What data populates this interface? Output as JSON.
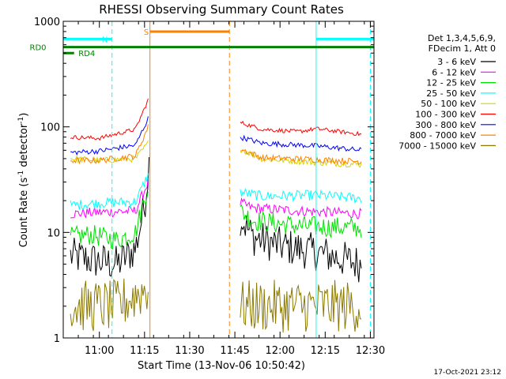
{
  "chart_data": {
    "type": "line",
    "title": "RHESSI Observing Summary Count Rates",
    "xlabel": "Start Time (13-Nov-06 10:50:42)",
    "ylabel_main": "Count Rate (s",
    "ylabel_sup1": "-1",
    "ylabel_mid": " detector",
    "ylabel_sup2": "-1",
    "ylabel_end": ")",
    "yscale": "log",
    "ylim": [
      1,
      1000
    ],
    "xlim_minutes": [
      10.8,
      12.52
    ],
    "x_tick_labels": [
      {
        "t": 11.0,
        "label": "11:00"
      },
      {
        "t": 11.25,
        "label": "11:15"
      },
      {
        "t": 11.5,
        "label": "11:30"
      },
      {
        "t": 11.75,
        "label": "11:45"
      },
      {
        "t": 12.0,
        "label": "12:00"
      },
      {
        "t": 12.25,
        "label": "12:15"
      },
      {
        "t": 12.5,
        "label": "12:30"
      }
    ],
    "y_tick_labels": [
      {
        "v": 1,
        "label": "1"
      },
      {
        "v": 10,
        "label": "10"
      },
      {
        "v": 100,
        "label": "100"
      },
      {
        "v": 1000,
        "label": "1000"
      }
    ],
    "legend_header": [
      "Det 1,3,4,5,6,9,",
      "FDecim 1, Att 0"
    ],
    "legend_position": "right",
    "gap": [
      11.28,
      11.78
    ],
    "series": [
      {
        "name": "3 - 6 keV",
        "color": "#000000",
        "pre": [
          [
            10.84,
            6.0
          ],
          [
            10.95,
            5.5
          ],
          [
            11.1,
            5.0
          ],
          [
            11.2,
            7.0
          ],
          [
            11.25,
            18.0
          ],
          [
            11.275,
            45.0
          ]
        ],
        "post": [
          [
            11.78,
            14.0
          ],
          [
            11.85,
            9.0
          ],
          [
            12.0,
            7.5
          ],
          [
            12.2,
            6.5
          ],
          [
            12.45,
            5.0
          ]
        ],
        "noise": 0.18
      },
      {
        "name": "6 - 12 keV",
        "color": "#ff00ff",
        "pre": [
          [
            10.84,
            15.0
          ],
          [
            11.0,
            15.5
          ],
          [
            11.2,
            16.0
          ],
          [
            11.27,
            30.0
          ]
        ],
        "post": [
          [
            11.78,
            19.0
          ],
          [
            11.85,
            17.0
          ],
          [
            12.1,
            16.0
          ],
          [
            12.45,
            15.0
          ]
        ],
        "noise": 0.05
      },
      {
        "name": "12 - 25 keV",
        "color": "#00e000",
        "pre": [
          [
            10.84,
            9.0
          ],
          [
            10.95,
            9.5
          ],
          [
            11.1,
            8.5
          ],
          [
            11.2,
            10.0
          ],
          [
            11.27,
            28.0
          ]
        ],
        "post": [
          [
            11.78,
            16.0
          ],
          [
            11.85,
            13.0
          ],
          [
            12.1,
            11.5
          ],
          [
            12.45,
            11.0
          ]
        ],
        "noise": 0.1
      },
      {
        "name": "25 - 50 keV",
        "color": "#00ffff",
        "pre": [
          [
            10.84,
            18.0
          ],
          [
            11.0,
            19.0
          ],
          [
            11.2,
            19.5
          ],
          [
            11.27,
            35.0
          ]
        ],
        "post": [
          [
            11.78,
            24.0
          ],
          [
            11.9,
            22.0
          ],
          [
            12.2,
            22.5
          ],
          [
            12.45,
            21.0
          ]
        ],
        "noise": 0.05
      },
      {
        "name": "50 - 100 keV",
        "color": "#d4d400",
        "pre": [
          [
            10.84,
            50.0
          ],
          [
            11.0,
            48.0
          ],
          [
            11.2,
            50.0
          ],
          [
            11.27,
            70.0
          ]
        ],
        "post": [
          [
            11.78,
            62.0
          ],
          [
            11.9,
            50.0
          ],
          [
            12.2,
            46.0
          ],
          [
            12.45,
            44.0
          ]
        ],
        "noise": 0.03
      },
      {
        "name": "100 - 300 keV",
        "color": "#ff0000",
        "pre": [
          [
            10.84,
            80.0
          ],
          [
            11.0,
            78.0
          ],
          [
            11.2,
            95.0
          ],
          [
            11.27,
            180.0
          ]
        ],
        "post": [
          [
            11.78,
            110.0
          ],
          [
            11.9,
            95.0
          ],
          [
            12.1,
            90.0
          ],
          [
            12.2,
            96.0
          ],
          [
            12.45,
            85.0
          ]
        ],
        "noise": 0.02
      },
      {
        "name": "300 - 800 keV",
        "color": "#0000ff",
        "pre": [
          [
            10.84,
            57.0
          ],
          [
            11.0,
            59.0
          ],
          [
            11.2,
            67.0
          ],
          [
            11.27,
            120.0
          ]
        ],
        "post": [
          [
            11.78,
            80.0
          ],
          [
            11.9,
            70.0
          ],
          [
            12.2,
            66.0
          ],
          [
            12.45,
            60.0
          ]
        ],
        "noise": 0.025
      },
      {
        "name": "800 - 7000 keV",
        "color": "#ff8000",
        "pre": [
          [
            10.84,
            48.0
          ],
          [
            11.0,
            48.0
          ],
          [
            11.2,
            53.0
          ],
          [
            11.27,
            100.0
          ]
        ],
        "post": [
          [
            11.78,
            62.0
          ],
          [
            11.9,
            51.0
          ],
          [
            12.2,
            49.0
          ],
          [
            12.45,
            47.0
          ]
        ],
        "noise": 0.03
      },
      {
        "name": "7000 - 15000 keV",
        "color": "#8c7a00",
        "pre": [
          [
            10.84,
            2.0
          ],
          [
            11.1,
            2.0
          ],
          [
            11.27,
            3.0
          ]
        ],
        "post": [
          [
            11.78,
            2.0
          ],
          [
            12.45,
            2.0
          ]
        ],
        "noise": 0.25
      }
    ],
    "flags": [
      {
        "label": "N",
        "color": "#00ffff",
        "level": 680,
        "segments": [
          [
            10.8,
            11.07
          ],
          [
            12.2,
            12.52
          ]
        ],
        "label_t": 11.03
      },
      {
        "label": "S",
        "color": "#ff8000",
        "level": 800,
        "segments": [
          [
            11.28,
            11.72
          ]
        ],
        "label_t": 11.26
      },
      {
        "label": "RD0",
        "color": "#008000",
        "level": 570,
        "segments": [
          [
            10.8,
            12.52
          ]
        ],
        "label_t": 10.66
      },
      {
        "label": "RD4",
        "color": "#008000",
        "level": 500,
        "segments": [
          [
            10.8,
            10.86
          ]
        ],
        "label_t": 10.93
      }
    ],
    "vlines": [
      {
        "t": 11.07,
        "color": "#00ffff",
        "style": "dashed"
      },
      {
        "t": 11.28,
        "color": "#ff8000",
        "style": "solid"
      },
      {
        "t": 11.72,
        "color": "#ff8000",
        "style": "dashed"
      },
      {
        "t": 12.2,
        "color": "#00ffff",
        "style": "solid"
      },
      {
        "t": 12.5,
        "color": "#00ffff",
        "style": "dashed"
      }
    ],
    "footer": "17-Oct-2021 23:12"
  }
}
